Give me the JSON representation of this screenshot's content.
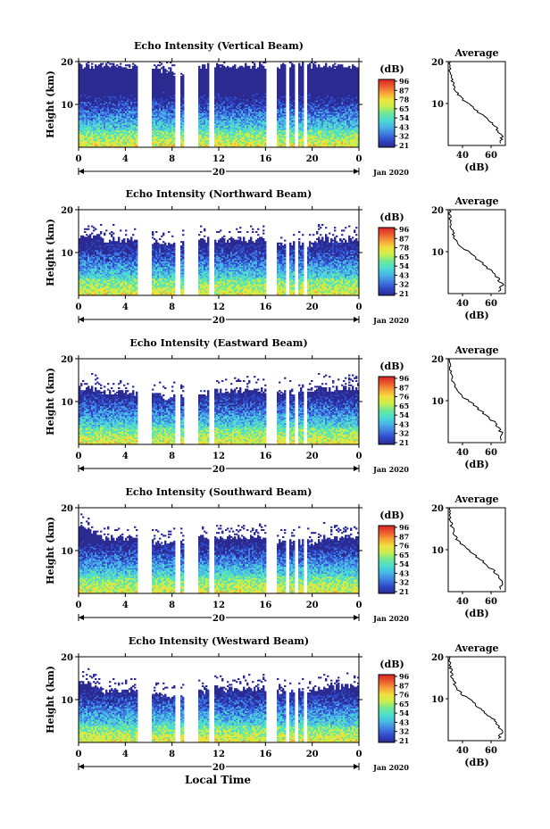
{
  "panels": [
    {
      "title": "Echo Intensity (Vertical Beam)",
      "profile_title": "Average",
      "profile_x_ticks": [
        "40",
        "60"
      ],
      "cbar_ticks": [
        "96",
        "87",
        "78",
        "65",
        "54",
        "43",
        "32",
        "21"
      ]
    },
    {
      "title": "Echo Intensity (Northward Beam)",
      "profile_title": "Average",
      "profile_x_ticks": [
        "40",
        "60"
      ],
      "cbar_ticks": [
        "96",
        "87",
        "78",
        "65",
        "54",
        "43",
        "32",
        "21"
      ]
    },
    {
      "title": "Echo Intensity (Eastward Beam)",
      "profile_title": "Average",
      "profile_x_ticks": [
        "40",
        "60"
      ],
      "cbar_ticks": [
        "96",
        "87",
        "76",
        "65",
        "54",
        "43",
        "32",
        "21"
      ]
    },
    {
      "title": "Echo Intensity (Southward Beam)",
      "profile_title": "Average",
      "profile_x_ticks": [
        "40",
        "60"
      ],
      "cbar_ticks": [
        "96",
        "87",
        "76",
        "65",
        "54",
        "43",
        "32",
        "21"
      ]
    },
    {
      "title": "Echo Intensity (Westward Beam)",
      "profile_title": "Average",
      "profile_x_ticks": [
        "40",
        "60"
      ],
      "cbar_ticks": [
        "96",
        "87",
        "76",
        "65",
        "54",
        "43",
        "32",
        "21"
      ]
    }
  ],
  "ylabel": "Height (km)",
  "y_ticks": [
    "20",
    "10"
  ],
  "x_ticks": [
    "0",
    "4",
    "8",
    "12",
    "16",
    "20",
    "0"
  ],
  "date_label": "20",
  "month_label": "Jan 2020",
  "cbar_unit": "(dB)",
  "profile_xlabel": "(dB)",
  "xlabel": "Local Time",
  "colors": {
    "scale": [
      "#2a2a90",
      "#2f48c8",
      "#3f7ee0",
      "#49b5e8",
      "#4ddcd0",
      "#6ce89a",
      "#c8ee4c",
      "#f0e23c",
      "#f7a23a",
      "#ee5a2e",
      "#d62626"
    ]
  },
  "chart_data": {
    "type": "heatmap",
    "x_unit": "local time (h), 20 Jan 2020",
    "xlim": [
      0,
      24
    ],
    "ylim": [
      0,
      20
    ],
    "color_range_db": [
      21,
      96
    ],
    "data_gaps_h": [
      [
        5.0,
        6.2
      ],
      [
        8.2,
        8.7
      ],
      [
        9.0,
        10.3
      ],
      [
        11.2,
        11.6
      ],
      [
        16.1,
        16.9
      ],
      [
        17.7,
        18.0
      ],
      [
        18.5,
        18.8
      ],
      [
        19.2,
        19.6
      ]
    ],
    "echo_top_km": [
      {
        "beam": "Vertical",
        "values": [
          19,
          19,
          19,
          19,
          19,
          18.5,
          18.5,
          18,
          17,
          18,
          19,
          19,
          19,
          19,
          19,
          19,
          19,
          19,
          19,
          19,
          19,
          19,
          19,
          19,
          19
        ]
      },
      {
        "beam": "Northward",
        "values": [
          14,
          14,
          13,
          13,
          13,
          12,
          12,
          12,
          12,
          13,
          13,
          13,
          13,
          13,
          13,
          13,
          13,
          12,
          12,
          12,
          13,
          13,
          13,
          13,
          14
        ]
      },
      {
        "beam": "Eastward",
        "values": [
          13,
          13,
          12,
          12,
          12,
          11.5,
          11.5,
          11,
          11,
          12,
          12,
          12.5,
          12.5,
          12.5,
          12.5,
          12.5,
          12.5,
          12,
          12,
          12.5,
          13,
          13,
          13,
          13,
          13
        ]
      },
      {
        "beam": "Southward",
        "values": [
          15,
          14,
          13,
          13,
          13,
          12,
          12,
          12,
          12,
          12,
          13,
          13,
          13,
          13,
          13,
          13,
          13,
          12,
          12,
          12,
          12,
          13,
          13,
          13,
          14
        ]
      },
      {
        "beam": "Westward",
        "values": [
          14,
          13,
          12,
          12,
          12,
          11.5,
          11.5,
          11,
          11,
          12,
          12,
          12.5,
          12.5,
          12.5,
          12.5,
          12.5,
          12.5,
          12,
          12,
          12,
          12.5,
          13,
          13,
          13,
          14
        ]
      }
    ],
    "average_profile": {
      "xlim_db": [
        30,
        70
      ],
      "height_km": [
        1,
        2,
        3,
        4,
        5,
        6,
        7,
        8,
        9,
        10,
        11,
        12,
        13,
        14,
        15,
        16,
        17,
        18,
        19,
        20
      ],
      "mean_db": [
        66,
        68,
        66,
        64,
        62,
        58,
        55,
        51,
        48,
        44,
        40,
        37,
        35,
        34,
        33,
        32,
        32,
        31,
        31,
        31
      ]
    }
  }
}
